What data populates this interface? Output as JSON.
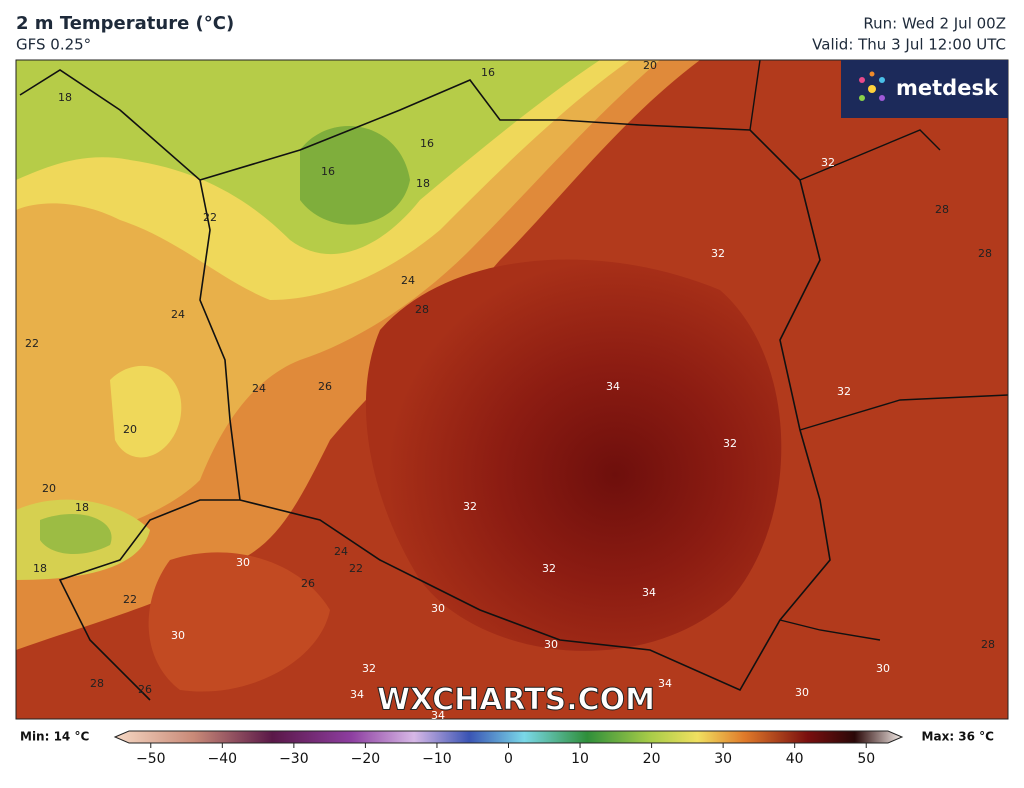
{
  "header": {
    "title": "2 m Temperature (°C)",
    "subtitle": "GFS 0.25°",
    "run": "Run: Wed 2 Jul 00Z",
    "valid": "Valid: Thu 3 Jul 12:00 UTC"
  },
  "logo": "metdesk",
  "watermark": "WXCHARTS.COM",
  "map_labels": [
    18,
    16,
    20,
    16,
    16,
    18,
    22,
    32,
    32,
    28,
    28,
    24,
    28,
    24,
    22,
    34,
    24,
    26,
    32,
    20,
    32,
    20,
    18,
    32,
    24,
    22,
    30,
    26,
    32,
    18,
    34,
    22,
    30,
    30,
    30,
    28,
    32,
    30,
    34,
    34,
    28,
    26,
    30,
    34
  ],
  "colorbar": {
    "min_label": "Min: 14 °C",
    "max_label": "Max: 36 °C",
    "lim": [
      -55,
      55
    ],
    "ticks": [
      {
        "value": -50,
        "label": "−50"
      },
      {
        "value": -40,
        "label": "−40"
      },
      {
        "value": -30,
        "label": "−30"
      },
      {
        "value": -20,
        "label": "−20"
      },
      {
        "value": -10,
        "label": "−10"
      },
      0,
      10,
      20,
      30,
      40,
      50
    ]
  }
}
